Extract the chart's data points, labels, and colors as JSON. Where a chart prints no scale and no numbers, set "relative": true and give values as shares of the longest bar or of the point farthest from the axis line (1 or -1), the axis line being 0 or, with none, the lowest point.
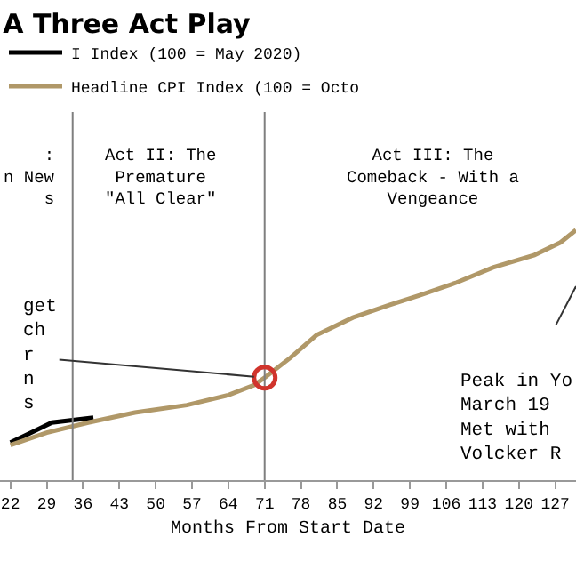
{
  "chart_data": {
    "type": "line",
    "title": "A Three Act Play",
    "xlabel": "Months From Start Date",
    "relative": true,
    "xlim": [
      20,
      131
    ],
    "xticks": [
      22,
      29,
      36,
      43,
      50,
      57,
      64,
      71,
      78,
      85,
      92,
      99,
      106,
      113,
      120,
      127
    ],
    "series": [
      {
        "name": "I Index (100 = May 2020)",
        "color": "#000000",
        "x": [
          22,
          27,
          30,
          34,
          38
        ],
        "values": [
          0.15,
          0.2,
          0.23,
          0.24,
          0.25
        ]
      },
      {
        "name": "Headline CPI Index (100 = Octo",
        "color": "#b09868",
        "x": [
          22,
          29,
          37,
          46,
          56,
          64,
          69,
          71,
          76,
          81,
          88,
          95,
          101,
          108,
          115,
          123,
          128,
          131
        ],
        "values": [
          0.14,
          0.19,
          0.23,
          0.27,
          0.3,
          0.34,
          0.38,
          0.41,
          0.49,
          0.58,
          0.65,
          0.7,
          0.74,
          0.79,
          0.85,
          0.9,
          0.95,
          1.0
        ]
      }
    ],
    "ref_lines": [
      {
        "axis": "x",
        "value": 34,
        "color": "#7f7f7f"
      },
      {
        "axis": "x",
        "value": 71,
        "color": "#7f7f7f"
      }
    ],
    "annotations": [
      ":\nn New\ns",
      "Act II: The\nPremature\n\"All Clear\"",
      "Act III: The\nComeback - With a\nVengeance",
      {
        "text": "get\nch\nr\nn\ns",
        "x": 71,
        "y": 0.41
      },
      "Peak in Yo\nMarch 19\nMet with\nVolcker R"
    ],
    "legend": "top left",
    "marker": "none",
    "line_style": "solid"
  }
}
